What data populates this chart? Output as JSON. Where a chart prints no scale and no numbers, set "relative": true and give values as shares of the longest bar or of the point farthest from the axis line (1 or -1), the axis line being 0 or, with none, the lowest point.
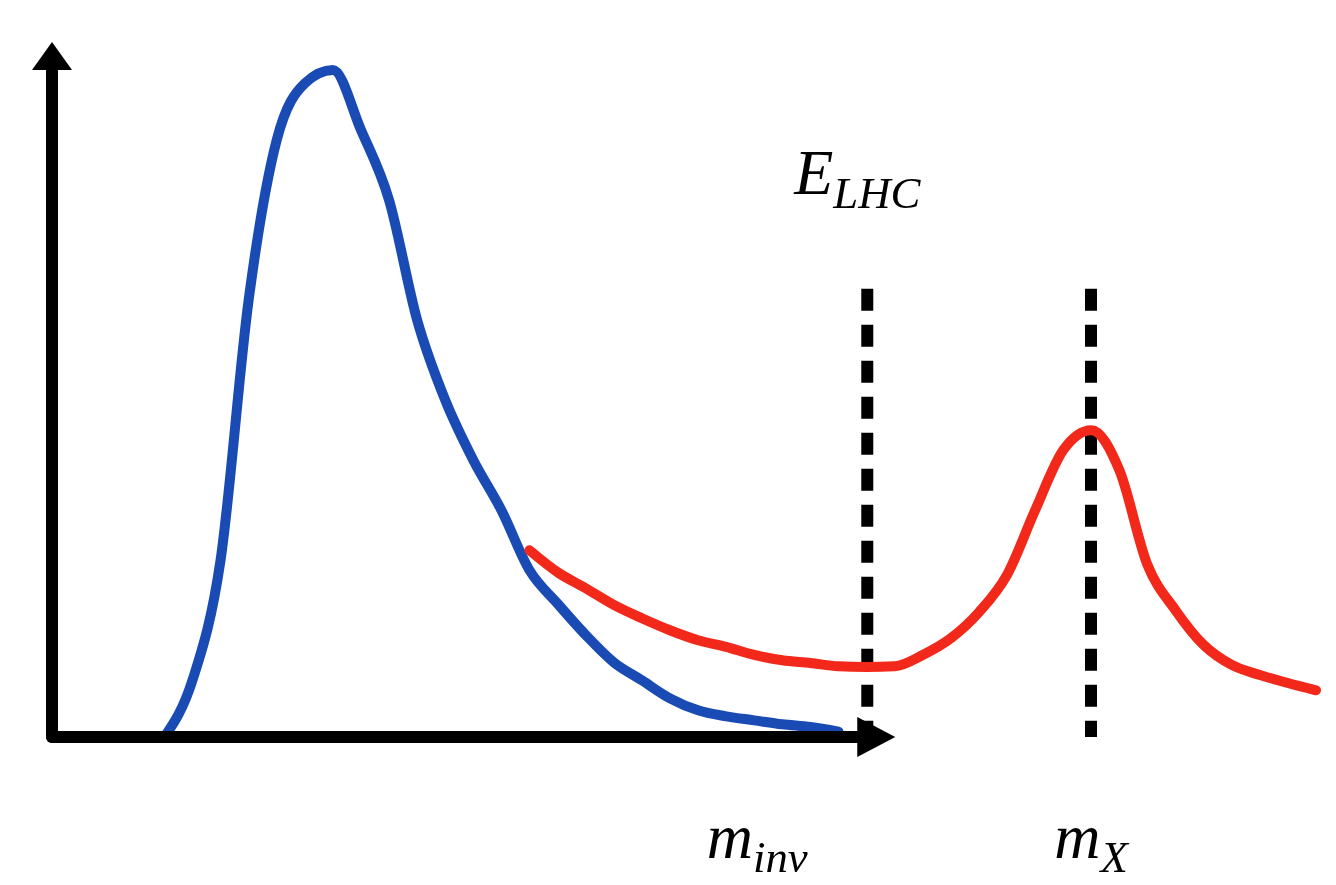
{
  "chart_data": {
    "type": "line",
    "relative": true,
    "xlabel": "m$_{inv}$",
    "annotations": [
      "E$_{LHC}$",
      "m$_{X}$"
    ],
    "categories": [
      null,
      null,
      null,
      null,
      null,
      null,
      null,
      null,
      null,
      null,
      null,
      null,
      null,
      null,
      null,
      null,
      null,
      null,
      null,
      null,
      null,
      null,
      null,
      null,
      null,
      null,
      null,
      null,
      null,
      null,
      null,
      null,
      null,
      null,
      null,
      null,
      null,
      null,
      null,
      null,
      null,
      null,
      null,
      null,
      null,
      null
    ],
    "series": [
      {
        "color": "#1a4bb5",
        "values": [
          null,
          null,
          null,
          null,
          0,
          0.085,
          0.265,
          0.655,
          0.895,
          0.98,
          1,
          0.91,
          0.805,
          0.625,
          0.505,
          0.415,
          0.34,
          0.25,
          0.2,
          0.153,
          0.112,
          0.085,
          0.058,
          0.04,
          0.031,
          0.025,
          0.019,
          0.015,
          0.008,
          null,
          null,
          null,
          null,
          null,
          null,
          null,
          null,
          null,
          null,
          null,
          null,
          null,
          null,
          null,
          null,
          null
        ]
      },
      {
        "color": "#f2281a",
        "values": [
          null,
          null,
          null,
          null,
          null,
          null,
          null,
          null,
          null,
          null,
          null,
          null,
          null,
          null,
          null,
          null,
          null,
          0.28,
          0.247,
          0.223,
          0.198,
          0.178,
          0.16,
          0.145,
          0.135,
          0.123,
          0.115,
          0.111,
          0.106,
          0.105,
          0.106,
          0.123,
          0.148,
          0.187,
          0.243,
          0.34,
          0.43,
          0.46,
          0.4,
          0.258,
          0.19,
          0.138,
          0.108,
          0.093,
          0.081,
          0.07
        ]
      }
    ],
    "marker": "none",
    "line_style": "solid"
  }
}
